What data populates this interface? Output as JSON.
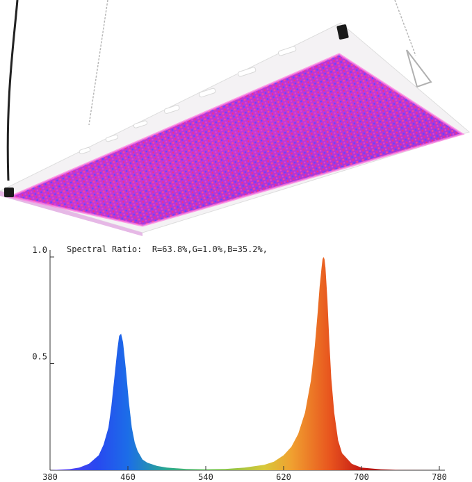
{
  "chart_data": {
    "type": "area",
    "title": "Spectral Ratio:  R=63.8%,G=1.0%,B=35.2%,",
    "xlim": [
      380,
      780
    ],
    "ylim": [
      0,
      1.0
    ],
    "x_ticks": [
      "380",
      "460",
      "540",
      "620",
      "700",
      "780"
    ],
    "y_ticks": [
      "1.0",
      "0.5"
    ],
    "grid": false,
    "series": [
      {
        "x": [
          380,
          400,
          410,
          420,
          430,
          435,
          440,
          443,
          446,
          449,
          451,
          453,
          455,
          458,
          461,
          464,
          467,
          470,
          475,
          480,
          490,
          500,
          520,
          540,
          560,
          580,
          600,
          610,
          620,
          628,
          635,
          642,
          648,
          652,
          655,
          657,
          659,
          660,
          661,
          662,
          663,
          665,
          667,
          669,
          672,
          676,
          680,
          690,
          700,
          720,
          740,
          780
        ],
        "y": [
          0.0,
          0.005,
          0.012,
          0.03,
          0.07,
          0.12,
          0.2,
          0.3,
          0.43,
          0.56,
          0.63,
          0.64,
          0.6,
          0.47,
          0.32,
          0.2,
          0.13,
          0.09,
          0.05,
          0.035,
          0.02,
          0.012,
          0.006,
          0.004,
          0.006,
          0.012,
          0.025,
          0.04,
          0.07,
          0.11,
          0.17,
          0.27,
          0.42,
          0.58,
          0.74,
          0.86,
          0.95,
          0.99,
          1.0,
          0.99,
          0.95,
          0.8,
          0.6,
          0.43,
          0.27,
          0.14,
          0.08,
          0.03,
          0.012,
          0.004,
          0.001,
          0.0
        ]
      }
    ]
  }
}
